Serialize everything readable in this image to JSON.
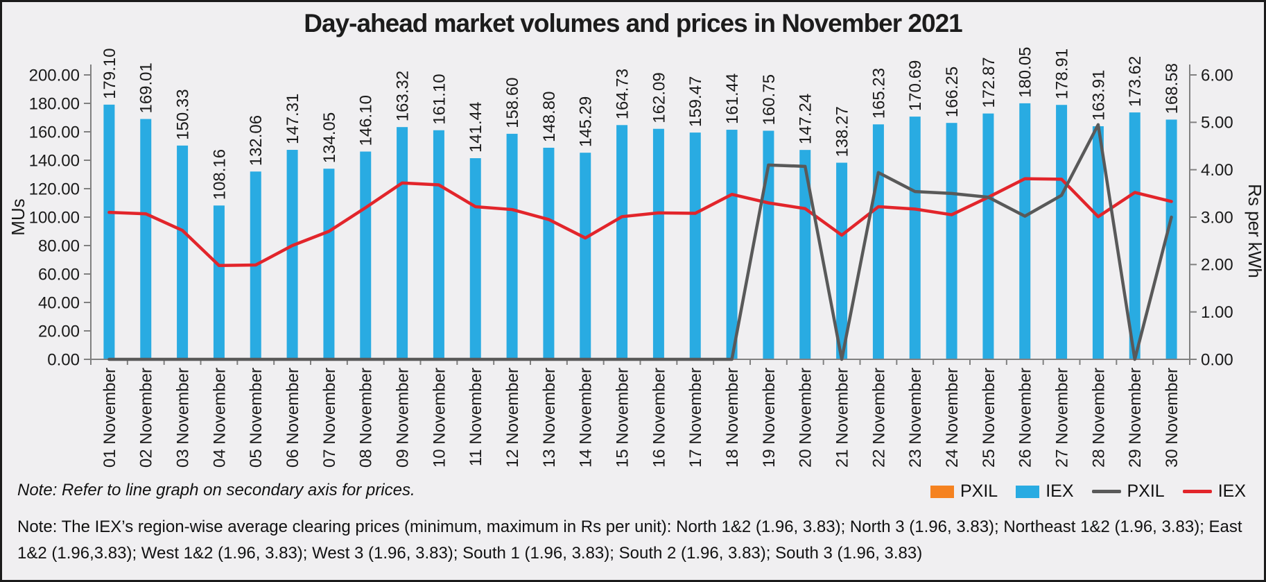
{
  "title": "Day-ahead market volumes and prices in November 2021",
  "notes": {
    "note1": "Note: Refer to line graph on secondary axis for prices.",
    "note2": "Note: The IEX’s region-wise average clearing prices (minimum, maximum in Rs per unit):  North 1&2 (1.96, 3.83); North 3 (1.96, 3.83); Northeast 1&2 (1.96, 3.83); East 1&2 (1.96,3.83); West 1&2 (1.96, 3.83); West 3 (1.96, 3.83); South 1 (1.96, 3.83); South 2 (1.96, 3.83); South 3 (1.96, 3.83)"
  },
  "legend": [
    {
      "label": "PXIL",
      "type": "swatch",
      "color": "#F58220"
    },
    {
      "label": "IEX",
      "type": "swatch",
      "color": "#29ABE2"
    },
    {
      "label": "PXIL",
      "type": "line",
      "color": "#595959"
    },
    {
      "label": "IEX",
      "type": "line",
      "color": "#E2252B"
    }
  ],
  "colors": {
    "iex_bar": "#29ABE2",
    "pxil_bar": "#F58220",
    "pxil_line": "#595959",
    "iex_line": "#E2252B",
    "axis": "#808080",
    "text": "#1a1a1a",
    "background": "#f0eff1"
  },
  "chart_data": {
    "type": "bar",
    "subtype": "bar-line combo, dual axis",
    "title": "Day-ahead market volumes and prices in November 2021",
    "categories": [
      "01 November",
      "02 November",
      "03 November",
      "04 November",
      "05 November",
      "06 November",
      "07 November",
      "08 November",
      "09 November",
      "10 November",
      "11 November",
      "12 November",
      "13 November",
      "14 November",
      "15 November",
      "16 November",
      "17 November",
      "18 November",
      "19 November",
      "20 November",
      "21 November",
      "22 November",
      "23 November",
      "24 November",
      "25 November",
      "26 November",
      "27 November",
      "28 November",
      "29 November",
      "30 November"
    ],
    "series": [
      {
        "name": "PXIL",
        "type": "bar",
        "axis": "left",
        "color": "#F58220",
        "values": [
          0,
          0,
          0,
          0,
          0,
          0,
          0,
          0,
          0,
          0,
          0,
          0,
          0,
          0,
          0,
          0,
          0,
          0,
          0,
          0,
          0,
          0,
          0,
          0,
          0,
          0,
          0,
          0,
          0,
          0
        ]
      },
      {
        "name": "IEX",
        "type": "bar",
        "axis": "left",
        "color": "#29ABE2",
        "data_labels": true,
        "values": [
          179.1,
          169.01,
          150.33,
          108.16,
          132.06,
          147.31,
          134.05,
          146.1,
          163.32,
          161.1,
          141.44,
          158.6,
          148.8,
          145.29,
          164.73,
          162.09,
          159.47,
          161.44,
          160.75,
          147.24,
          138.27,
          165.23,
          170.69,
          166.25,
          172.87,
          180.05,
          178.91,
          163.91,
          173.62,
          168.58
        ]
      },
      {
        "name": "PXIL",
        "type": "line",
        "axis": "right",
        "color": "#595959",
        "values": [
          0,
          0,
          0,
          0,
          0,
          0,
          0,
          0,
          0,
          0,
          0,
          0,
          0,
          0,
          0,
          0,
          0,
          0,
          4.1,
          4.07,
          0,
          3.94,
          3.54,
          3.5,
          3.42,
          3.02,
          3.46,
          4.95,
          0,
          3.0
        ]
      },
      {
        "name": "IEX",
        "type": "line",
        "axis": "right",
        "color": "#E2252B",
        "values": [
          3.1,
          3.07,
          2.72,
          1.98,
          1.99,
          2.4,
          2.7,
          3.2,
          3.72,
          3.68,
          3.22,
          3.16,
          2.95,
          2.56,
          3.01,
          3.09,
          3.08,
          3.48,
          3.3,
          3.18,
          2.62,
          3.22,
          3.17,
          3.05,
          3.42,
          3.81,
          3.8,
          3.01,
          3.52,
          3.33
        ]
      }
    ],
    "left_axis": {
      "label": "MUs",
      "min": 0,
      "max": 200,
      "step": 20,
      "tick_format": "2dp"
    },
    "right_axis": {
      "label": "Rs per kWh",
      "min": 0,
      "max": 6,
      "step": 1,
      "tick_format": "2dp"
    },
    "grid": false,
    "legend_position": "bottom-right",
    "x_tick_rotation": -90,
    "bar_label_rotation": -90
  }
}
